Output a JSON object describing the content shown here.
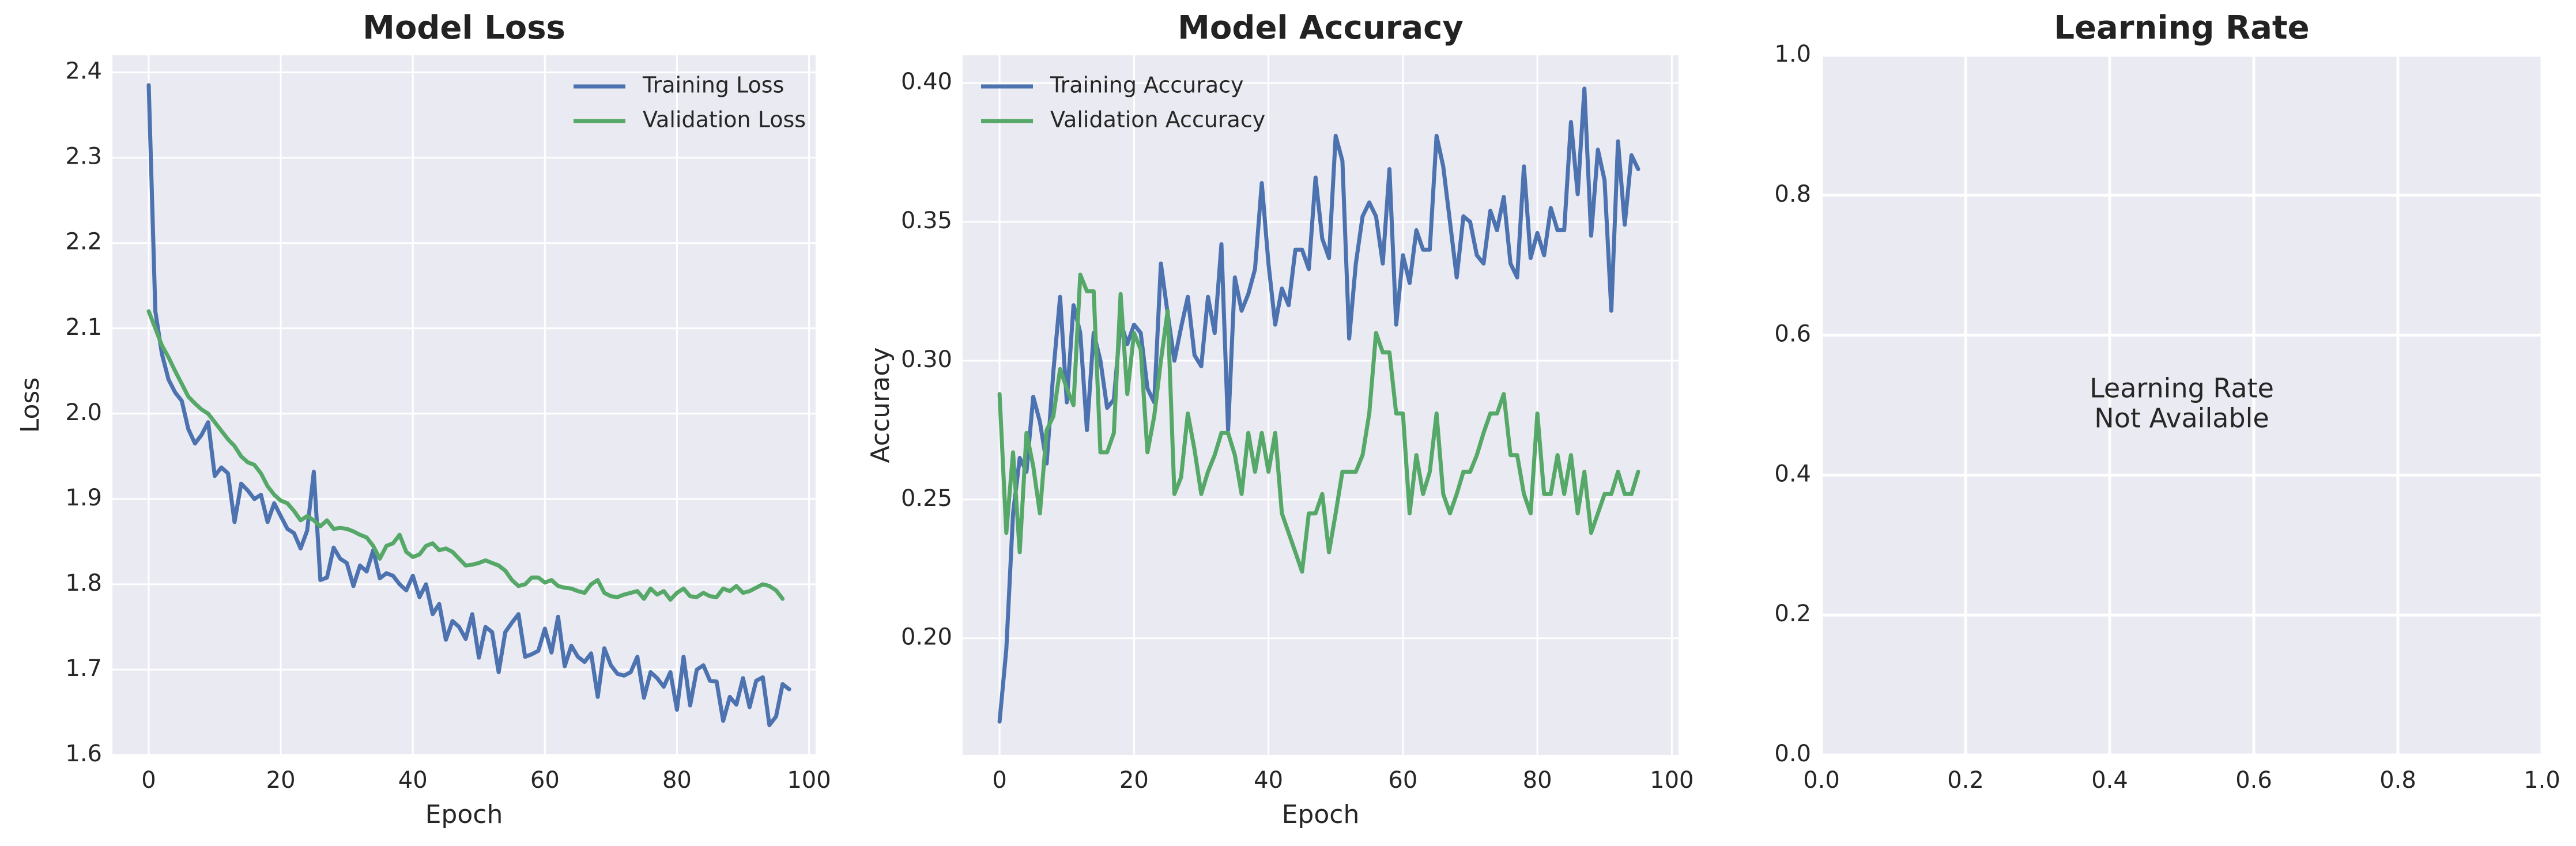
{
  "figure": {
    "background": "#ffffff",
    "panel_background": "#eaeaf2",
    "grid_color": "#ffffff"
  },
  "chart_data": [
    {
      "type": "line",
      "title": "Model Loss",
      "xlabel": "Epoch",
      "ylabel": "Loss",
      "xlim": [
        -5.5,
        101
      ],
      "ylim": [
        1.6,
        2.42
      ],
      "xticks": [
        0,
        20,
        40,
        60,
        80,
        100
      ],
      "yticks": [
        1.6,
        1.7,
        1.8,
        1.9,
        2.0,
        2.1,
        2.2,
        2.3,
        2.4
      ],
      "tick_labels_x": [
        "0",
        "20",
        "40",
        "60",
        "80",
        "100"
      ],
      "tick_labels_y": [
        "1.6",
        "1.7",
        "1.8",
        "1.9",
        "2.0",
        "2.1",
        "2.2",
        "2.3",
        "2.4"
      ],
      "grid": true,
      "legend": "top-right",
      "series": [
        {
          "name": "Training Loss",
          "color": "#4c72b0",
          "values": [
            2.385,
            2.12,
            2.07,
            2.04,
            2.025,
            2.015,
            1.982,
            1.965,
            1.975,
            1.99,
            1.927,
            1.937,
            1.93,
            1.873,
            1.918,
            1.91,
            1.9,
            1.905,
            1.873,
            1.895,
            1.88,
            1.865,
            1.86,
            1.842,
            1.863,
            1.932,
            1.805,
            1.808,
            1.843,
            1.83,
            1.825,
            1.798,
            1.822,
            1.815,
            1.84,
            1.807,
            1.813,
            1.81,
            1.8,
            1.793,
            1.81,
            1.785,
            1.8,
            1.765,
            1.777,
            1.735,
            1.757,
            1.75,
            1.736,
            1.765,
            1.714,
            1.75,
            1.744,
            1.697,
            1.744,
            1.755,
            1.765,
            1.715,
            1.718,
            1.722,
            1.748,
            1.72,
            1.762,
            1.704,
            1.728,
            1.715,
            1.709,
            1.719,
            1.668,
            1.725,
            1.705,
            1.695,
            1.693,
            1.697,
            1.715,
            1.667,
            1.697,
            1.69,
            1.68,
            1.697,
            1.653,
            1.715,
            1.658,
            1.7,
            1.705,
            1.687,
            1.686,
            1.64,
            1.668,
            1.659,
            1.69,
            1.656,
            1.687,
            1.691,
            1.635,
            1.645,
            1.683,
            1.677
          ]
        },
        {
          "name": "Validation Loss",
          "color": "#55a868",
          "values": [
            2.12,
            2.1,
            2.08,
            2.066,
            2.05,
            2.035,
            2.02,
            2.012,
            2.005,
            2.0,
            1.99,
            1.98,
            1.97,
            1.962,
            1.95,
            1.943,
            1.94,
            1.93,
            1.915,
            1.905,
            1.898,
            1.895,
            1.886,
            1.875,
            1.88,
            1.875,
            1.868,
            1.875,
            1.865,
            1.866,
            1.865,
            1.862,
            1.858,
            1.855,
            1.845,
            1.83,
            1.845,
            1.848,
            1.858,
            1.838,
            1.832,
            1.835,
            1.845,
            1.848,
            1.84,
            1.842,
            1.838,
            1.83,
            1.822,
            1.823,
            1.825,
            1.828,
            1.825,
            1.822,
            1.816,
            1.805,
            1.798,
            1.8,
            1.808,
            1.808,
            1.802,
            1.805,
            1.798,
            1.796,
            1.795,
            1.792,
            1.79,
            1.8,
            1.805,
            1.79,
            1.786,
            1.785,
            1.788,
            1.79,
            1.792,
            1.783,
            1.795,
            1.788,
            1.792,
            1.782,
            1.79,
            1.795,
            1.786,
            1.785,
            1.79,
            1.786,
            1.785,
            1.795,
            1.792,
            1.798,
            1.79,
            1.792,
            1.796,
            1.8,
            1.798,
            1.793,
            1.783
          ]
        }
      ]
    },
    {
      "type": "line",
      "title": "Model Accuracy",
      "xlabel": "Epoch",
      "ylabel": "Accuracy",
      "xlim": [
        -5.5,
        101
      ],
      "ylim": [
        0.158,
        0.41
      ],
      "xticks": [
        0,
        20,
        40,
        60,
        80,
        100
      ],
      "yticks": [
        0.2,
        0.25,
        0.3,
        0.35,
        0.4
      ],
      "tick_labels_x": [
        "0",
        "20",
        "40",
        "60",
        "80",
        "100"
      ],
      "tick_labels_y": [
        "0.20",
        "0.25",
        "0.30",
        "0.35",
        "0.40"
      ],
      "grid": true,
      "legend": "top-left",
      "series": [
        {
          "name": "Training Accuracy",
          "color": "#4c72b0",
          "values": [
            0.17,
            0.196,
            0.245,
            0.265,
            0.26,
            0.287,
            0.278,
            0.263,
            0.296,
            0.323,
            0.285,
            0.32,
            0.31,
            0.275,
            0.31,
            0.3,
            0.283,
            0.286,
            0.314,
            0.306,
            0.313,
            0.31,
            0.29,
            0.285,
            0.335,
            0.317,
            0.3,
            0.312,
            0.323,
            0.302,
            0.298,
            0.323,
            0.31,
            0.342,
            0.275,
            0.33,
            0.318,
            0.324,
            0.333,
            0.364,
            0.335,
            0.313,
            0.326,
            0.32,
            0.34,
            0.34,
            0.333,
            0.366,
            0.344,
            0.337,
            0.381,
            0.372,
            0.308,
            0.335,
            0.352,
            0.357,
            0.352,
            0.335,
            0.369,
            0.313,
            0.338,
            0.328,
            0.347,
            0.34,
            0.34,
            0.381,
            0.37,
            0.35,
            0.33,
            0.352,
            0.35,
            0.338,
            0.335,
            0.354,
            0.347,
            0.359,
            0.335,
            0.33,
            0.37,
            0.337,
            0.346,
            0.338,
            0.355,
            0.347,
            0.347,
            0.386,
            0.36,
            0.398,
            0.345,
            0.376,
            0.365,
            0.318,
            0.379,
            0.349,
            0.374,
            0.369
          ]
        },
        {
          "name": "Validation Accuracy",
          "color": "#55a868",
          "values": [
            0.288,
            0.238,
            0.267,
            0.231,
            0.274,
            0.262,
            0.245,
            0.275,
            0.28,
            0.297,
            0.29,
            0.284,
            0.331,
            0.325,
            0.325,
            0.267,
            0.267,
            0.274,
            0.324,
            0.288,
            0.31,
            0.304,
            0.267,
            0.28,
            0.3,
            0.318,
            0.252,
            0.258,
            0.281,
            0.268,
            0.252,
            0.26,
            0.266,
            0.274,
            0.274,
            0.266,
            0.252,
            0.274,
            0.26,
            0.274,
            0.26,
            0.274,
            0.245,
            0.238,
            0.231,
            0.224,
            0.245,
            0.245,
            0.252,
            0.231,
            0.245,
            0.26,
            0.26,
            0.26,
            0.266,
            0.281,
            0.31,
            0.303,
            0.303,
            0.281,
            0.281,
            0.245,
            0.266,
            0.252,
            0.26,
            0.281,
            0.252,
            0.245,
            0.252,
            0.26,
            0.26,
            0.266,
            0.274,
            0.281,
            0.281,
            0.288,
            0.266,
            0.266,
            0.252,
            0.245,
            0.281,
            0.252,
            0.252,
            0.266,
            0.252,
            0.266,
            0.245,
            0.26,
            0.238,
            0.245,
            0.252,
            0.252,
            0.26,
            0.252,
            0.252,
            0.26
          ]
        }
      ]
    },
    {
      "type": "line",
      "title": "Learning Rate",
      "xlabel": "",
      "ylabel": "",
      "xlim": [
        0,
        1
      ],
      "ylim": [
        0,
        1
      ],
      "xticks": [
        0,
        0.2,
        0.4,
        0.6,
        0.8,
        1.0
      ],
      "yticks": [
        0,
        0.2,
        0.4,
        0.6,
        0.8,
        1.0
      ],
      "tick_labels_x": [
        "0.0",
        "0.2",
        "0.4",
        "0.6",
        "0.8",
        "1.0"
      ],
      "tick_labels_y": [
        "0.0",
        "0.2",
        "0.4",
        "0.6",
        "0.8",
        "1.0"
      ],
      "grid": true,
      "annotation": [
        "Learning Rate",
        "Not Available"
      ],
      "series": []
    }
  ]
}
